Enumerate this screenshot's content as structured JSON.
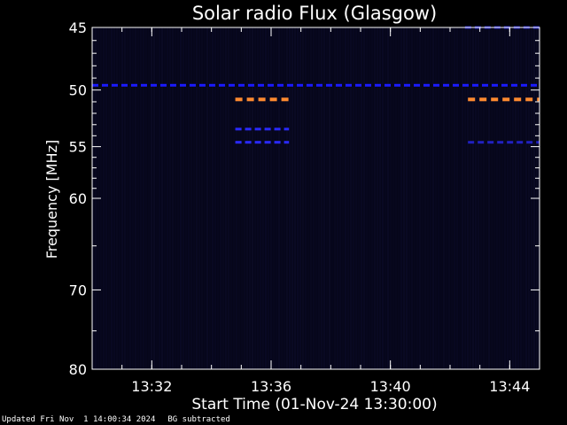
{
  "footer": {
    "updated": "Updated Fri Nov  1 14:00:34 2024",
    "note": "BG subtracted"
  },
  "chart_data": {
    "type": "heatmap",
    "title": "Solar radio Flux (Glasgow)",
    "xlabel": "Start Time (01-Nov-24 13:30:00)",
    "ylabel": "Frequency [MHz]",
    "x_tick_labels": [
      "13:32",
      "13:36",
      "13:40",
      "13:44"
    ],
    "x_ticks_minutes": [
      2,
      6,
      10,
      14
    ],
    "xlim_minutes": [
      0,
      15
    ],
    "y_scale": "log",
    "ylim": [
      45,
      80
    ],
    "y_tick_labels": [
      "45",
      "50",
      "55",
      "60",
      "70",
      "80"
    ],
    "y_ticks": [
      45,
      50,
      55,
      60,
      70,
      80
    ],
    "y_minor_ticks": [
      46,
      47,
      48,
      49,
      51,
      52,
      53,
      54,
      56,
      57,
      58,
      59,
      65,
      75
    ],
    "background_color": "#06061a",
    "features": [
      {
        "freq_mhz": 49.6,
        "t_start_min": 0.0,
        "t_end_min": 15.0,
        "color": "#1a1aff",
        "intensity": "medium"
      },
      {
        "freq_mhz": 45.0,
        "t_start_min": 12.5,
        "t_end_min": 15.0,
        "color": "#2020c0",
        "intensity": "low"
      },
      {
        "freq_mhz": 50.8,
        "t_start_min": 4.8,
        "t_end_min": 6.6,
        "color": "#ff8a30",
        "intensity": "high"
      },
      {
        "freq_mhz": 50.8,
        "t_start_min": 12.6,
        "t_end_min": 15.0,
        "color": "#ff8a30",
        "intensity": "high"
      },
      {
        "freq_mhz": 53.4,
        "t_start_min": 4.8,
        "t_end_min": 6.6,
        "color": "#2a2aff",
        "intensity": "medium"
      },
      {
        "freq_mhz": 54.6,
        "t_start_min": 4.8,
        "t_end_min": 6.6,
        "color": "#2a2aff",
        "intensity": "medium"
      },
      {
        "freq_mhz": 54.6,
        "t_start_min": 12.6,
        "t_end_min": 15.0,
        "color": "#2020c0",
        "intensity": "low"
      }
    ]
  }
}
